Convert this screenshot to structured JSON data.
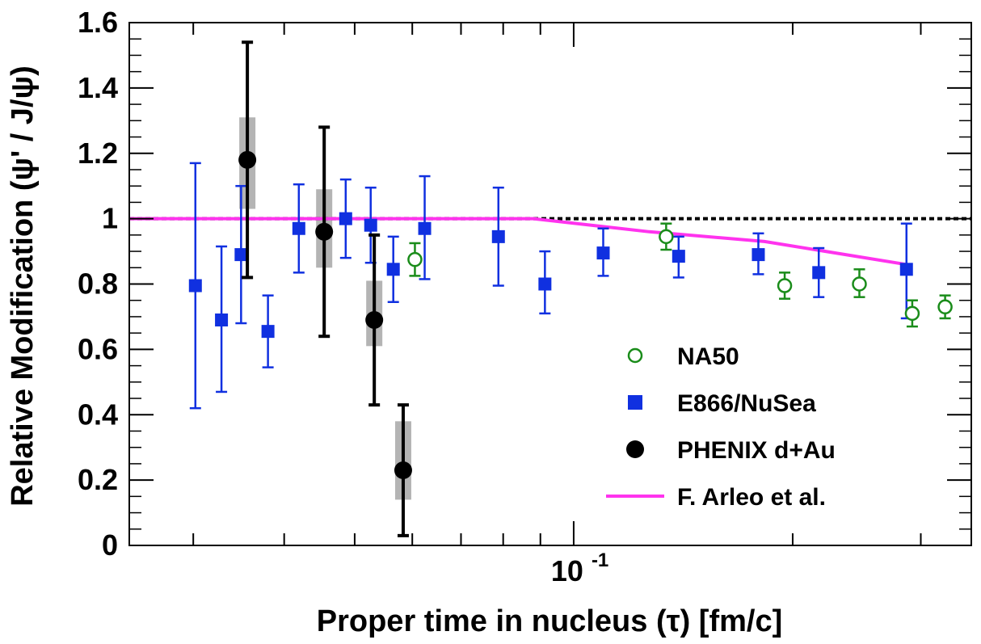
{
  "chart_data": {
    "type": "scatter",
    "xlabel": "Proper time in nucleus (τ) [fm/c]",
    "ylabel": "Relative Modification (ψ' / J/ψ)",
    "x_scale": "log",
    "xlim": [
      0.0245,
      0.352
    ],
    "ylim": [
      0,
      1.6
    ],
    "y_ticks": [
      "0",
      "0.2",
      "0.4",
      "0.6",
      "0.8",
      "1",
      "1.2",
      "1.4",
      "1.6"
    ],
    "x_tick_label": {
      "base": "10",
      "exp": "-1",
      "value": 0.1
    },
    "legend_position": "center-right",
    "reference_line": {
      "y": 1.0,
      "style": "dotted",
      "color": "#000000"
    },
    "series": [
      {
        "name": "NA50",
        "marker": "open-circle",
        "color": "#1a8c1a",
        "points": [
          {
            "x": 0.0605,
            "y": 0.875,
            "lo": 0.825,
            "hi": 0.925
          },
          {
            "x": 0.134,
            "y": 0.945,
            "lo": 0.905,
            "hi": 0.985
          },
          {
            "x": 0.195,
            "y": 0.795,
            "lo": 0.755,
            "hi": 0.835
          },
          {
            "x": 0.247,
            "y": 0.8,
            "lo": 0.76,
            "hi": 0.845
          },
          {
            "x": 0.292,
            "y": 0.71,
            "lo": 0.67,
            "hi": 0.75
          },
          {
            "x": 0.324,
            "y": 0.73,
            "lo": 0.695,
            "hi": 0.765
          }
        ]
      },
      {
        "name": "E866/NuSea",
        "marker": "filled-square",
        "color": "#1030e0",
        "points": [
          {
            "x": 0.0302,
            "y": 0.795,
            "lo": 0.42,
            "hi": 1.17
          },
          {
            "x": 0.0328,
            "y": 0.69,
            "lo": 0.47,
            "hi": 0.915
          },
          {
            "x": 0.0349,
            "y": 0.89,
            "lo": 0.68,
            "hi": 1.1
          },
          {
            "x": 0.038,
            "y": 0.655,
            "lo": 0.545,
            "hi": 0.765
          },
          {
            "x": 0.0419,
            "y": 0.97,
            "lo": 0.835,
            "hi": 1.105
          },
          {
            "x": 0.0486,
            "y": 1.0,
            "lo": 0.88,
            "hi": 1.12
          },
          {
            "x": 0.0526,
            "y": 0.98,
            "lo": 0.865,
            "hi": 1.095
          },
          {
            "x": 0.0565,
            "y": 0.845,
            "lo": 0.745,
            "hi": 0.945
          },
          {
            "x": 0.0624,
            "y": 0.97,
            "lo": 0.815,
            "hi": 1.13
          },
          {
            "x": 0.0788,
            "y": 0.945,
            "lo": 0.795,
            "hi": 1.095
          },
          {
            "x": 0.0913,
            "y": 0.8,
            "lo": 0.71,
            "hi": 0.9
          },
          {
            "x": 0.1098,
            "y": 0.895,
            "lo": 0.825,
            "hi": 0.97
          },
          {
            "x": 0.1394,
            "y": 0.885,
            "lo": 0.82,
            "hi": 0.945
          },
          {
            "x": 0.1794,
            "y": 0.89,
            "lo": 0.83,
            "hi": 0.955
          },
          {
            "x": 0.2172,
            "y": 0.835,
            "lo": 0.76,
            "hi": 0.91
          },
          {
            "x": 0.2867,
            "y": 0.845,
            "lo": 0.695,
            "hi": 0.985
          }
        ]
      },
      {
        "name": "PHENIX d+Au",
        "marker": "filled-circle",
        "color": "#000000",
        "points": [
          {
            "x": 0.0356,
            "y": 1.18,
            "lo": 0.82,
            "hi": 1.54,
            "sys_lo": 1.03,
            "sys_hi": 1.31
          },
          {
            "x": 0.0454,
            "y": 0.96,
            "lo": 0.64,
            "hi": 1.28,
            "sys_lo": 0.85,
            "sys_hi": 1.09
          },
          {
            "x": 0.0532,
            "y": 0.69,
            "lo": 0.43,
            "hi": 0.95,
            "sys_lo": 0.61,
            "sys_hi": 0.81
          },
          {
            "x": 0.0583,
            "y": 0.23,
            "lo": 0.03,
            "hi": 0.43,
            "sys_lo": 0.14,
            "sys_hi": 0.38
          }
        ]
      },
      {
        "name": "F. Arleo et al.",
        "type": "line",
        "color": "#ff33ee",
        "points": [
          {
            "x": 0.0245,
            "y": 1.0
          },
          {
            "x": 0.088,
            "y": 1.0
          },
          {
            "x": 0.127,
            "y": 0.96
          },
          {
            "x": 0.183,
            "y": 0.93
          },
          {
            "x": 0.286,
            "y": 0.86
          }
        ]
      }
    ]
  }
}
